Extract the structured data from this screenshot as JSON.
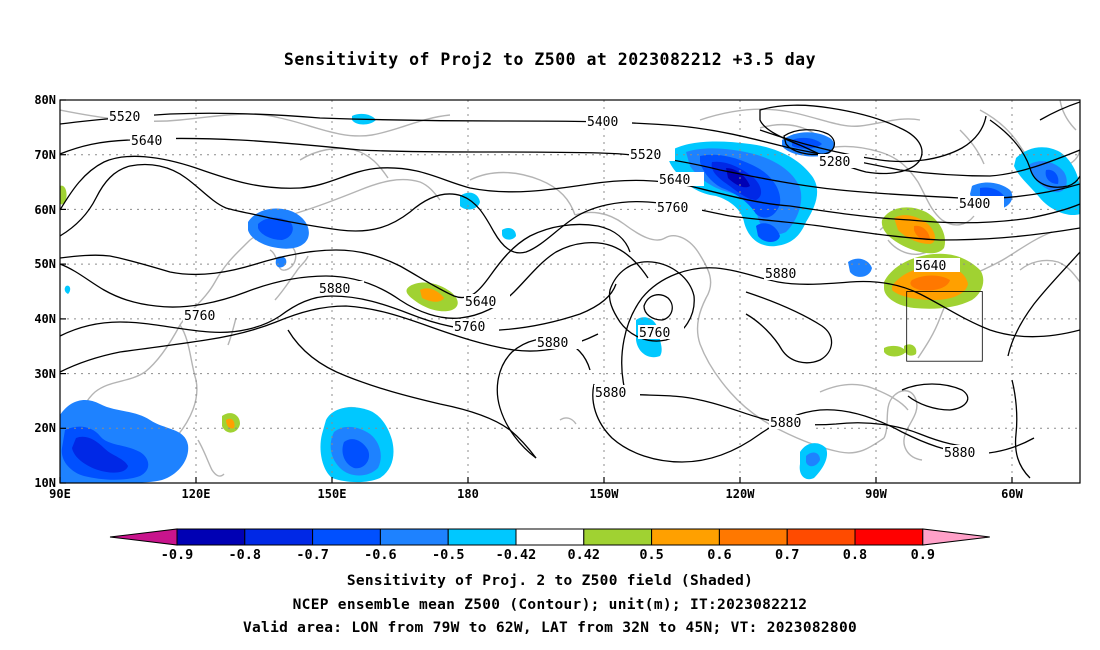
{
  "title": "Sensitivity of Proj2 to Z500 at 2023082212 +3.5 day",
  "axes": {
    "lat_labels": [
      "80N",
      "70N",
      "60N",
      "50N",
      "40N",
      "30N",
      "20N",
      "10N"
    ],
    "lon_labels": [
      "90E",
      "120E",
      "150E",
      "180",
      "150W",
      "120W",
      "90W",
      "60W"
    ],
    "lat_range": [
      10,
      80
    ],
    "lon_range": [
      90,
      315
    ],
    "gridlines": "dotted"
  },
  "contour_labels": {
    "c5520a": "5520",
    "c5640a": "5640",
    "c5400": "5400",
    "c5520b": "5520",
    "c5640b": "5640",
    "c5760a": "5760",
    "c5280": "5280",
    "c5400b": "5400",
    "c5640c": "5640",
    "c5880a": "5880",
    "c5760b": "5760",
    "c5880b": "5880",
    "c5640d": "5640",
    "c5760c": "5760",
    "c5880c": "5880",
    "c5760d": "5760",
    "c5880d": "5880",
    "c5880e": "5880",
    "c5880f": "5880"
  },
  "colorbar": {
    "ticks": [
      "-0.9",
      "-0.8",
      "-0.7",
      "-0.6",
      "-0.5",
      "-0.42",
      "0.42",
      "0.5",
      "0.6",
      "0.7",
      "0.8",
      "0.9"
    ],
    "colors": [
      "#0000b4",
      "#0028e6",
      "#0050ff",
      "#1e82ff",
      "#00c8ff",
      "#ffffff",
      "#a0d232",
      "#ffa000",
      "#ff7800",
      "#ff4b00",
      "#ff0000"
    ],
    "low_triangle_color": "#c8148c",
    "high_triangle_color": "#ffa0c8"
  },
  "footer": {
    "line1": "Sensitivity of Proj. 2 to Z500 field (Shaded)",
    "line2": "NCEP ensemble mean Z500 (Contour); unit(m); IT:2023082212",
    "line3": "Valid area: LON from 79W to 62W, LAT from 32N to 45N; VT: 2023082800"
  },
  "valid_area": {
    "lon": [
      "79W",
      "62W"
    ],
    "lat": [
      "32N",
      "45N"
    ]
  }
}
